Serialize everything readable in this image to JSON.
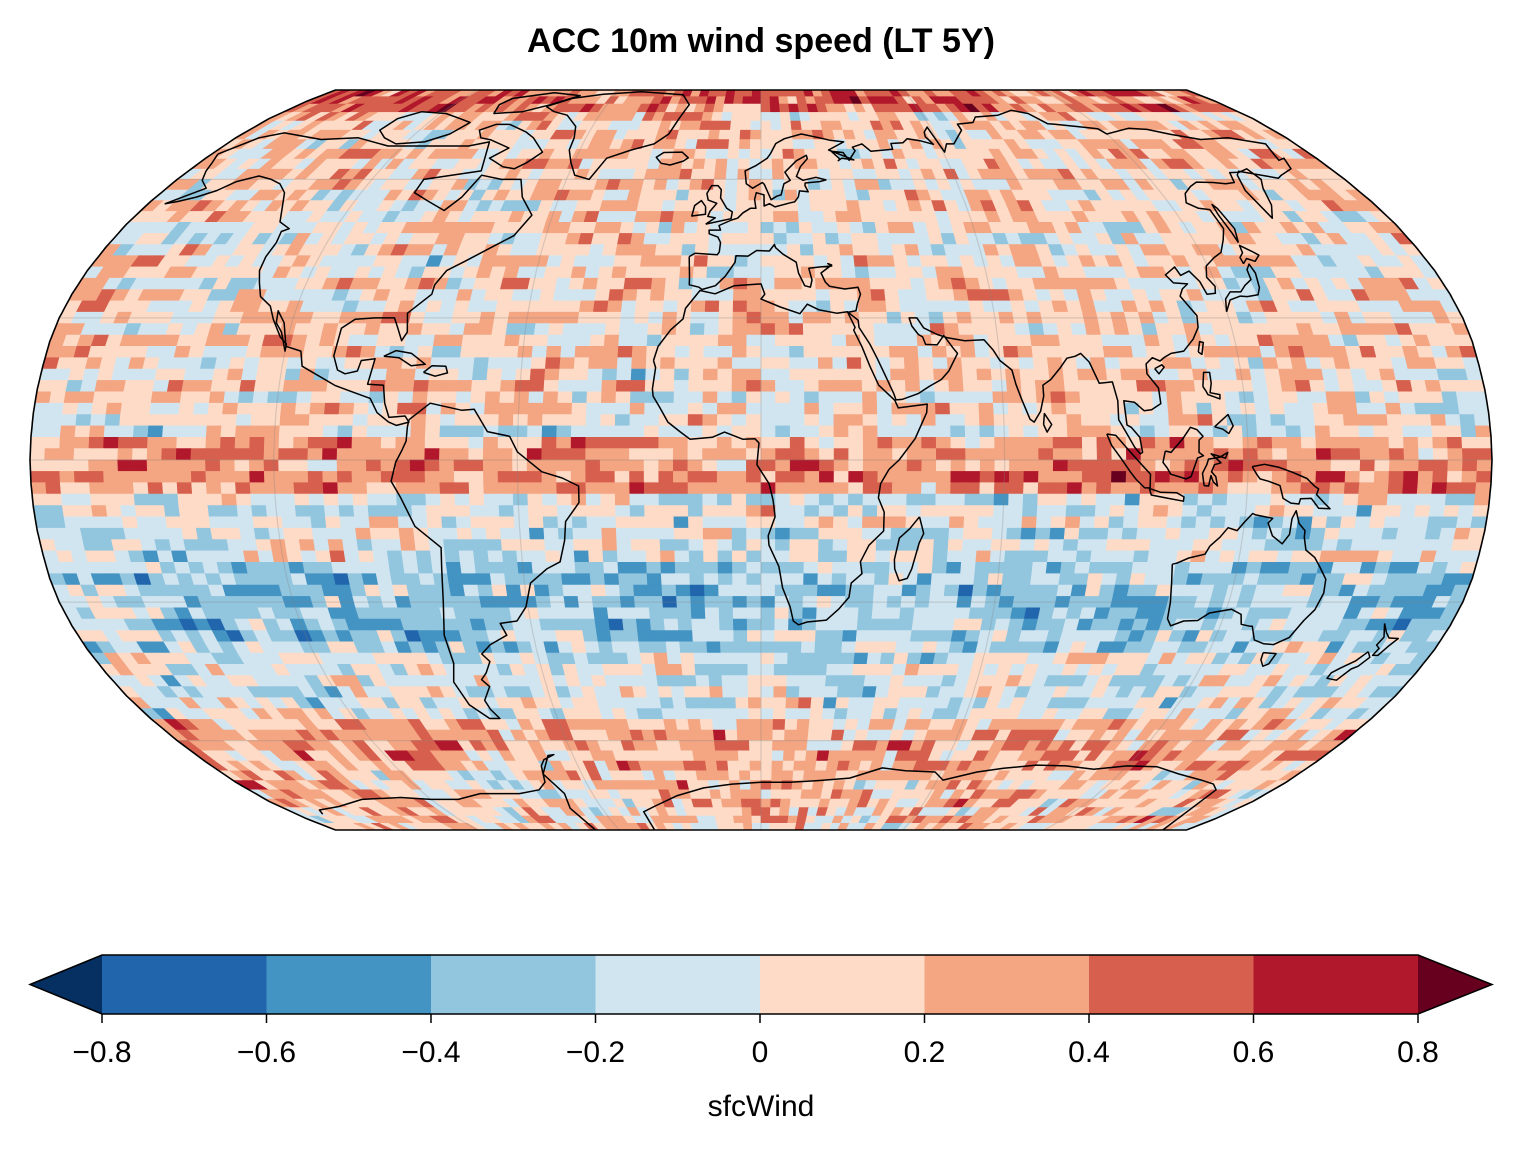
{
  "chart_data": {
    "type": "heatmap",
    "title": "ACC 10m wind speed (LT 5Y)",
    "projection": "Robinson",
    "variable": "sfcWind",
    "colorbar": {
      "label": "sfcWind",
      "boundaries": [
        -0.8,
        -0.6,
        -0.4,
        -0.2,
        0,
        0.2,
        0.4,
        0.6,
        0.8
      ],
      "tick_labels": [
        "−0.8",
        "−0.6",
        "−0.4",
        "−0.2",
        "0",
        "0.2",
        "0.4",
        "0.6",
        "0.8"
      ],
      "colors": [
        "#2166ac",
        "#4393c3",
        "#92c5de",
        "#d1e5f0",
        "#fddbc7",
        "#f4a582",
        "#d6604d",
        "#b2182b"
      ],
      "under_color": "#053061",
      "over_color": "#67001f",
      "extend": "both"
    }
  }
}
